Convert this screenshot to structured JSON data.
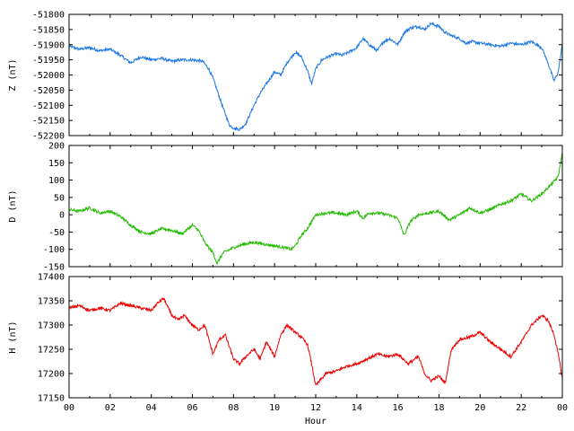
{
  "chart_data": [
    {
      "type": "line",
      "title": "",
      "ylabel": "Z (nT)",
      "xlabel": "",
      "ylim": [
        -52200,
        -51800
      ],
      "yticks": [
        -51800,
        -51850,
        -51900,
        -51950,
        -52000,
        -52050,
        -52100,
        -52150,
        -52200
      ],
      "xlim": [
        0,
        24
      ],
      "color": "#1e78e6",
      "series": [
        {
          "x": [
            0,
            0.5,
            1,
            1.5,
            2,
            2.5,
            3,
            3.5,
            4,
            4.5,
            5,
            5.5,
            6,
            6.5,
            6.8,
            7,
            7.2,
            7.5,
            7.8,
            8,
            8.3,
            8.6,
            9,
            9.3,
            9.6,
            10,
            10.3,
            10.6,
            11,
            11.3,
            11.6,
            11.8,
            12,
            12.3,
            12.6,
            13,
            13.3,
            13.6,
            14,
            14.3,
            14.6,
            15,
            15.3,
            15.6,
            16,
            16.3,
            16.6,
            17,
            17.3,
            17.6,
            18,
            18.3,
            18.6,
            19,
            19.3,
            19.6,
            20,
            20.5,
            21,
            21.5,
            22,
            22.5,
            23,
            23.3,
            23.6,
            23.8,
            24
          ],
          "y": [
            -51905,
            -51915,
            -51910,
            -51920,
            -51915,
            -51935,
            -51960,
            -51940,
            -51950,
            -51945,
            -51955,
            -51950,
            -51950,
            -51955,
            -51980,
            -52010,
            -52050,
            -52110,
            -52165,
            -52175,
            -52180,
            -52160,
            -52100,
            -52060,
            -52030,
            -51990,
            -52000,
            -51960,
            -51925,
            -51940,
            -51985,
            -52030,
            -51980,
            -51950,
            -51940,
            -51930,
            -51935,
            -51925,
            -51910,
            -51880,
            -51900,
            -51920,
            -51890,
            -51880,
            -51900,
            -51860,
            -51845,
            -51840,
            -51850,
            -51830,
            -51840,
            -51860,
            -51870,
            -51880,
            -51895,
            -51890,
            -51895,
            -51900,
            -51905,
            -51895,
            -51900,
            -51890,
            -51910,
            -51960,
            -52020,
            -51990,
            -51900
          ]
        }
      ]
    },
    {
      "type": "line",
      "title": "",
      "ylabel": "D (nT)",
      "xlabel": "",
      "ylim": [
        -150,
        200
      ],
      "yticks": [
        200,
        150,
        100,
        50,
        0,
        -50,
        -100,
        -150
      ],
      "xlim": [
        0,
        24
      ],
      "color": "#22bb00",
      "series": [
        {
          "x": [
            0,
            0.5,
            1,
            1.5,
            2,
            2.5,
            3,
            3.5,
            4,
            4.5,
            5,
            5.5,
            6,
            6.3,
            6.6,
            7,
            7.2,
            7.5,
            8,
            8.5,
            9,
            9.5,
            10,
            10.5,
            10.8,
            11,
            11.3,
            11.6,
            12,
            12.5,
            13,
            13.5,
            14,
            14.3,
            14.6,
            15,
            15.5,
            16,
            16.3,
            16.6,
            17,
            17.5,
            18,
            18.5,
            19,
            19.5,
            20,
            20.5,
            21,
            21.5,
            22,
            22.5,
            23,
            23.5,
            23.8,
            24
          ],
          "y": [
            15,
            10,
            20,
            5,
            10,
            -5,
            -30,
            -50,
            -55,
            -40,
            -45,
            -55,
            -30,
            -45,
            -80,
            -110,
            -140,
            -110,
            -95,
            -85,
            -80,
            -85,
            -90,
            -95,
            -100,
            -90,
            -60,
            -40,
            0,
            5,
            5,
            0,
            10,
            -10,
            5,
            5,
            0,
            -10,
            -60,
            -20,
            0,
            5,
            10,
            -15,
            0,
            20,
            5,
            15,
            30,
            40,
            60,
            40,
            60,
            90,
            110,
            180
          ]
        }
      ]
    },
    {
      "type": "line",
      "title": "",
      "ylabel": "H (nT)",
      "xlabel": "Hour",
      "ylim": [
        17150,
        17400
      ],
      "yticks": [
        17400,
        17350,
        17300,
        17250,
        17200,
        17150
      ],
      "xlim": [
        0,
        24
      ],
      "xticks": [
        "00",
        "02",
        "04",
        "06",
        "08",
        "10",
        "12",
        "14",
        "16",
        "18",
        "20",
        "22",
        "00"
      ],
      "color": "#ee0000",
      "series": [
        {
          "x": [
            0,
            0.5,
            1,
            1.5,
            2,
            2.5,
            3,
            3.5,
            4,
            4.3,
            4.6,
            5,
            5.3,
            5.6,
            6,
            6.3,
            6.6,
            6.8,
            7,
            7.3,
            7.6,
            8,
            8.3,
            8.6,
            9,
            9.3,
            9.6,
            10,
            10.3,
            10.6,
            11,
            11.3,
            11.6,
            11.8,
            12,
            12.5,
            13,
            13.5,
            14,
            14.5,
            15,
            15.5,
            16,
            16.5,
            17,
            17.3,
            17.6,
            18,
            18.3,
            18.6,
            19,
            19.5,
            20,
            20.5,
            21,
            21.5,
            22,
            22.5,
            23,
            23.3,
            23.6,
            23.8,
            24
          ],
          "y": [
            17335,
            17340,
            17330,
            17335,
            17330,
            17345,
            17340,
            17335,
            17330,
            17345,
            17355,
            17320,
            17310,
            17320,
            17300,
            17290,
            17300,
            17270,
            17240,
            17270,
            17280,
            17230,
            17220,
            17235,
            17250,
            17230,
            17265,
            17235,
            17280,
            17300,
            17285,
            17275,
            17260,
            17220,
            17175,
            17200,
            17205,
            17215,
            17220,
            17230,
            17240,
            17235,
            17240,
            17220,
            17235,
            17200,
            17185,
            17195,
            17180,
            17250,
            17270,
            17275,
            17285,
            17265,
            17250,
            17235,
            17265,
            17300,
            17320,
            17310,
            17280,
            17240,
            17190
          ]
        }
      ]
    }
  ]
}
